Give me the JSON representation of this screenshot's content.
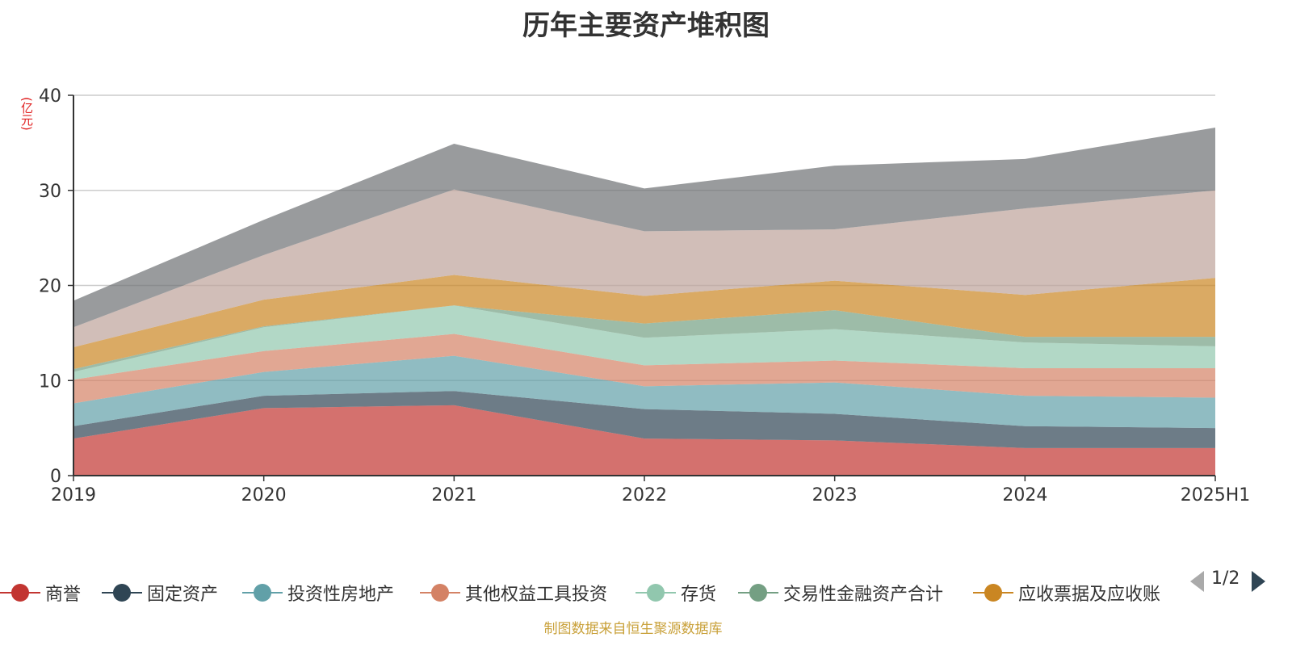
{
  "chart_data": {
    "type": "area",
    "stacked": true,
    "title": "历年主要资产堆积图",
    "y_unit": "(亿元)",
    "ylim": [
      0,
      40
    ],
    "y_ticks": [
      0,
      10,
      20,
      30,
      40
    ],
    "grid": true,
    "categories": [
      "2019",
      "2020",
      "2021",
      "2022",
      "2023",
      "2024",
      "2025H1"
    ],
    "series": [
      {
        "name": "商誉",
        "color": "#c23531",
        "values": [
          3.9,
          7.1,
          7.4,
          3.9,
          3.7,
          2.9,
          2.9
        ]
      },
      {
        "name": "固定资产",
        "color": "#2f4554",
        "values": [
          1.3,
          1.3,
          1.5,
          3.1,
          2.8,
          2.3,
          2.1
        ]
      },
      {
        "name": "投资性房地产",
        "color": "#61a0a8",
        "values": [
          2.4,
          2.5,
          3.7,
          2.4,
          3.3,
          3.2,
          3.2
        ]
      },
      {
        "name": "其他权益工具投资",
        "color": "#d48265",
        "values": [
          2.5,
          2.2,
          2.3,
          2.2,
          2.3,
          2.9,
          3.1
        ]
      },
      {
        "name": "存货",
        "color": "#91c7ae",
        "values": [
          0.8,
          2.5,
          3.0,
          2.9,
          3.3,
          2.7,
          2.3
        ]
      },
      {
        "name": "交易性金融资产合计",
        "color": "#749f83",
        "values": [
          0.3,
          0.1,
          0.0,
          1.5,
          2.0,
          0.6,
          1.0
        ]
      },
      {
        "name": "应收票据及应收账",
        "color": "#ca8622",
        "values": [
          2.3,
          2.8,
          3.2,
          2.9,
          3.1,
          4.4,
          6.2
        ]
      },
      {
        "name": "",
        "color": "#bda29a",
        "values": [
          2.1,
          4.7,
          9.0,
          6.8,
          5.4,
          9.1,
          9.2
        ]
      },
      {
        "name": "",
        "color": "#6e7074",
        "values": [
          2.8,
          3.7,
          4.8,
          4.5,
          6.7,
          5.2,
          6.6
        ]
      }
    ]
  },
  "legend": {
    "page": "1/2"
  },
  "source_note": "制图数据来自恒生聚源数据库"
}
